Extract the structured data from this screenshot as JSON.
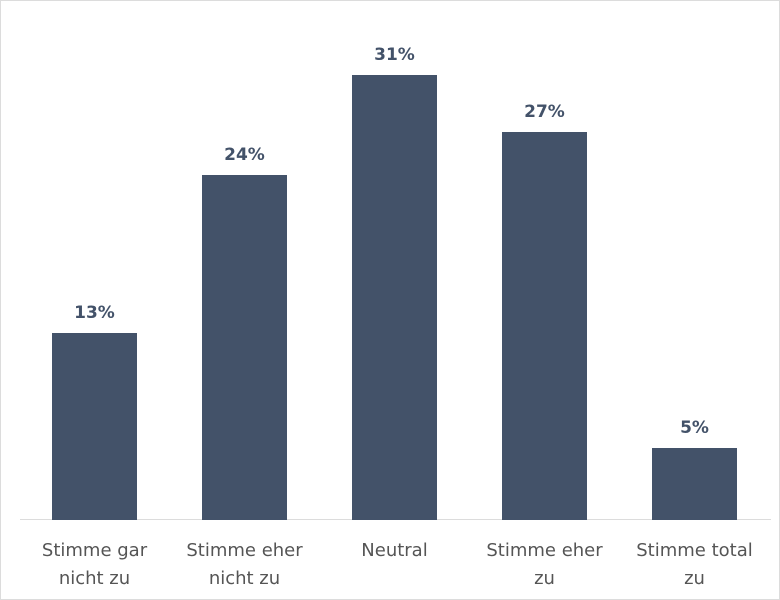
{
  "chart_data": {
    "type": "bar",
    "title": "",
    "xlabel": "",
    "ylabel": "",
    "categories": [
      "Stimme gar nicht zu",
      "Stimme eher nicht zu",
      "Neutral",
      "Stimme eher zu",
      "Stimme total zu"
    ],
    "category_lines": [
      [
        "Stimme gar",
        "nicht zu"
      ],
      [
        "Stimme eher",
        "nicht zu"
      ],
      [
        "Neutral",
        ""
      ],
      [
        "Stimme eher",
        "zu"
      ],
      [
        "Stimme total",
        "zu"
      ]
    ],
    "values": [
      13,
      24,
      31,
      27,
      5
    ],
    "value_labels": [
      "13%",
      "24%",
      "31%",
      "27%",
      "5%"
    ],
    "unit": "%",
    "ylim": [
      0,
      31
    ],
    "grid": false,
    "legend": null,
    "colors": {
      "bar": "#435269",
      "label": "#435269",
      "category_text": "#555555",
      "axis": "#dcdcdc"
    }
  }
}
